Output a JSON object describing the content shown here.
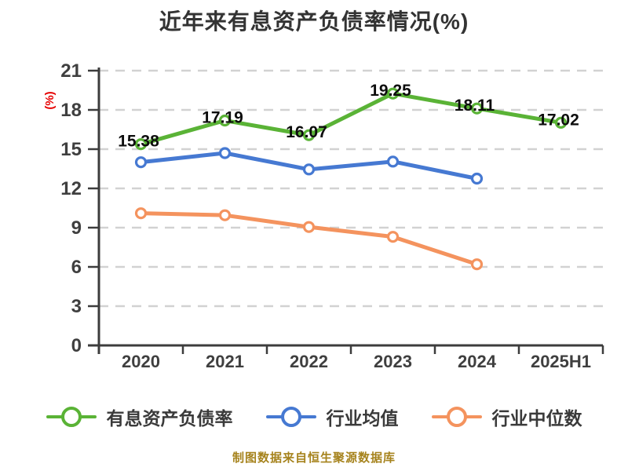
{
  "title": "近年来有息资产负债率情况(%)",
  "footer_note": "制图数据来自恒生聚源数据库",
  "colors": {
    "background": "#ffffff",
    "title_text": "#333333",
    "axis": "#3c3c3c",
    "grid": "#d2d2d2",
    "tick_text": "#3f3f3f",
    "data_label_text": "#0d0d0d",
    "legend_text": "#3a3a3a",
    "ylabel_red": "#e60000",
    "footer_text": "#a6831d",
    "series_green": "#5ab336",
    "series_blue": "#4679d2",
    "series_orange": "#f4935e"
  },
  "chart_data": {
    "type": "line",
    "title": "近年来有息资产负债率情况(%)",
    "ylabel": "(%)",
    "xlabel": "",
    "ylim": [
      0,
      21
    ],
    "yticks": [
      0,
      3,
      6,
      9,
      12,
      15,
      18,
      21
    ],
    "grid": "horizontal-dashed",
    "legend_position": "bottom",
    "categories": [
      "2020",
      "2021",
      "2022",
      "2023",
      "2024",
      "2025H1"
    ],
    "series": [
      {
        "name": "有息资产负债率",
        "color": "#5ab336",
        "values": [
          15.38,
          17.19,
          16.07,
          19.25,
          18.11,
          17.02
        ],
        "labels_shown": true
      },
      {
        "name": "行业均值",
        "color": "#4679d2",
        "values": [
          14.0,
          14.7,
          13.45,
          14.05,
          12.75,
          null
        ],
        "labels_shown": false
      },
      {
        "name": "行业中位数",
        "color": "#f4935e",
        "values": [
          10.1,
          9.95,
          9.05,
          8.3,
          6.2,
          null
        ],
        "labels_shown": false
      }
    ]
  }
}
